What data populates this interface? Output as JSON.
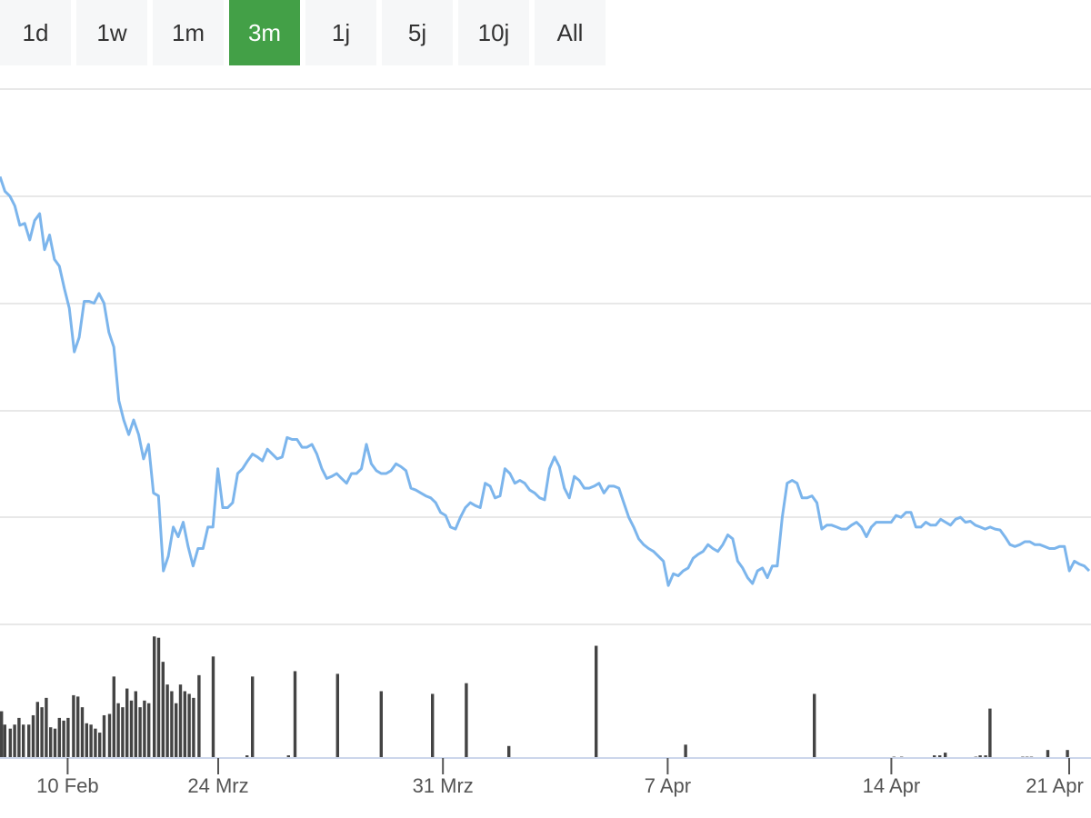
{
  "range_selector": {
    "options": [
      "1d",
      "1w",
      "1m",
      "3m",
      "1j",
      "5j",
      "10j",
      "All"
    ],
    "selected": "3m"
  },
  "colors": {
    "line": "#7cb5ec",
    "volume": "#444444",
    "active_button": "#43a047",
    "grid": "#e0e0e0"
  },
  "chart_data": {
    "type": "line",
    "title": "",
    "xlabel": "",
    "ylabel": "",
    "grid": true,
    "x_ticks": [
      {
        "label": "10 Feb",
        "pos": 0.062
      },
      {
        "label": "24 Mrz",
        "pos": 0.2
      },
      {
        "label": "31 Mrz",
        "pos": 0.406
      },
      {
        "label": "7 Apr",
        "pos": 0.612
      },
      {
        "label": "14 Apr",
        "pos": 0.817
      },
      {
        "label": "21 Apr",
        "pos": 0.98
      }
    ],
    "ylim": [
      0,
      5.5
    ],
    "price": [
      4.6,
      4.45,
      4.4,
      4.3,
      4.1,
      4.12,
      3.95,
      4.15,
      4.22,
      3.85,
      4.0,
      3.75,
      3.68,
      3.45,
      3.25,
      2.8,
      2.95,
      3.32,
      3.32,
      3.3,
      3.4,
      3.3,
      3.0,
      2.85,
      2.3,
      2.1,
      1.95,
      2.1,
      1.95,
      1.7,
      1.85,
      1.35,
      1.32,
      0.55,
      0.7,
      1.0,
      0.9,
      1.05,
      0.8,
      0.6,
      0.78,
      0.78,
      1.0,
      1.0,
      1.6,
      1.2,
      1.2,
      1.25,
      1.55,
      1.6,
      1.68,
      1.75,
      1.72,
      1.68,
      1.8,
      1.75,
      1.7,
      1.72,
      1.92,
      1.9,
      1.9,
      1.82,
      1.82,
      1.85,
      1.75,
      1.6,
      1.5,
      1.52,
      1.55,
      1.5,
      1.45,
      1.55,
      1.55,
      1.6,
      1.85,
      1.65,
      1.58,
      1.55,
      1.55,
      1.58,
      1.65,
      1.62,
      1.58,
      1.4,
      1.38,
      1.35,
      1.32,
      1.3,
      1.25,
      1.15,
      1.12,
      1.0,
      0.98,
      1.1,
      1.2,
      1.25,
      1.22,
      1.2,
      1.45,
      1.42,
      1.3,
      1.32,
      1.6,
      1.55,
      1.45,
      1.48,
      1.45,
      1.38,
      1.35,
      1.3,
      1.28,
      1.6,
      1.72,
      1.62,
      1.4,
      1.3,
      1.52,
      1.48,
      1.4,
      1.4,
      1.42,
      1.45,
      1.35,
      1.42,
      1.42,
      1.4,
      1.25,
      1.1,
      1.0,
      0.88,
      0.82,
      0.78,
      0.75,
      0.7,
      0.65,
      0.4,
      0.52,
      0.5,
      0.55,
      0.58,
      0.68,
      0.72,
      0.75,
      0.82,
      0.78,
      0.75,
      0.82,
      0.92,
      0.88,
      0.65,
      0.58,
      0.48,
      0.42,
      0.55,
      0.58,
      0.48,
      0.6,
      0.6,
      1.1,
      1.45,
      1.48,
      1.45,
      1.3,
      1.3,
      1.32,
      1.25,
      0.98,
      1.02,
      1.02,
      1.0,
      0.98,
      0.98,
      1.02,
      1.05,
      1.0,
      0.9,
      1.0,
      1.05,
      1.05,
      1.05,
      1.05,
      1.12,
      1.1,
      1.15,
      1.15,
      1.0,
      1.0,
      1.05,
      1.02,
      1.02,
      1.08,
      1.05,
      1.02,
      1.08,
      1.1,
      1.05,
      1.06,
      1.02,
      1.0,
      0.98,
      1.0,
      0.98,
      0.97,
      0.9,
      0.82,
      0.8,
      0.82,
      0.85,
      0.85,
      0.82,
      0.82,
      0.8,
      0.78,
      0.78,
      0.8,
      0.8,
      0.55,
      0.65,
      0.62,
      0.6,
      0.55
    ],
    "volume": [
      [
        0.0,
        0.35
      ],
      [
        0.003,
        0.25
      ],
      [
        0.008,
        0.22
      ],
      [
        0.012,
        0.25
      ],
      [
        0.016,
        0.3
      ],
      [
        0.02,
        0.25
      ],
      [
        0.025,
        0.25
      ],
      [
        0.029,
        0.32
      ],
      [
        0.033,
        0.42
      ],
      [
        0.037,
        0.38
      ],
      [
        0.041,
        0.45
      ],
      [
        0.045,
        0.23
      ],
      [
        0.049,
        0.22
      ],
      [
        0.053,
        0.3
      ],
      [
        0.057,
        0.28
      ],
      [
        0.061,
        0.3
      ],
      [
        0.066,
        0.47
      ],
      [
        0.07,
        0.46
      ],
      [
        0.074,
        0.38
      ],
      [
        0.078,
        0.26
      ],
      [
        0.082,
        0.25
      ],
      [
        0.086,
        0.22
      ],
      [
        0.09,
        0.19
      ],
      [
        0.094,
        0.32
      ],
      [
        0.099,
        0.33
      ],
      [
        0.103,
        0.61
      ],
      [
        0.107,
        0.41
      ],
      [
        0.111,
        0.38
      ],
      [
        0.115,
        0.52
      ],
      [
        0.119,
        0.43
      ],
      [
        0.123,
        0.5
      ],
      [
        0.127,
        0.38
      ],
      [
        0.131,
        0.43
      ],
      [
        0.135,
        0.41
      ],
      [
        0.14,
        0.91
      ],
      [
        0.144,
        0.9
      ],
      [
        0.148,
        0.72
      ],
      [
        0.152,
        0.55
      ],
      [
        0.156,
        0.5
      ],
      [
        0.16,
        0.41
      ],
      [
        0.164,
        0.55
      ],
      [
        0.168,
        0.5
      ],
      [
        0.172,
        0.48
      ],
      [
        0.176,
        0.45
      ],
      [
        0.181,
        0.62
      ],
      [
        0.194,
        0.76
      ],
      [
        0.225,
        0.02
      ],
      [
        0.23,
        0.61
      ],
      [
        0.263,
        0.02
      ],
      [
        0.269,
        0.65
      ],
      [
        0.308,
        0.63
      ],
      [
        0.348,
        0.5
      ],
      [
        0.395,
        0.48
      ],
      [
        0.426,
        0.56
      ],
      [
        0.465,
        0.09
      ],
      [
        0.545,
        0.84
      ],
      [
        0.627,
        0.1
      ],
      [
        0.745,
        0.48
      ],
      [
        0.818,
        0.01
      ],
      [
        0.825,
        0.01
      ],
      [
        0.855,
        0.02
      ],
      [
        0.86,
        0.02
      ],
      [
        0.865,
        0.04
      ],
      [
        0.893,
        0.01
      ],
      [
        0.897,
        0.02
      ],
      [
        0.902,
        0.02
      ],
      [
        0.906,
        0.37
      ],
      [
        0.936,
        0.01
      ],
      [
        0.94,
        0.01
      ],
      [
        0.944,
        0.01
      ],
      [
        0.959,
        0.06
      ],
      [
        0.977,
        0.06
      ]
    ]
  }
}
